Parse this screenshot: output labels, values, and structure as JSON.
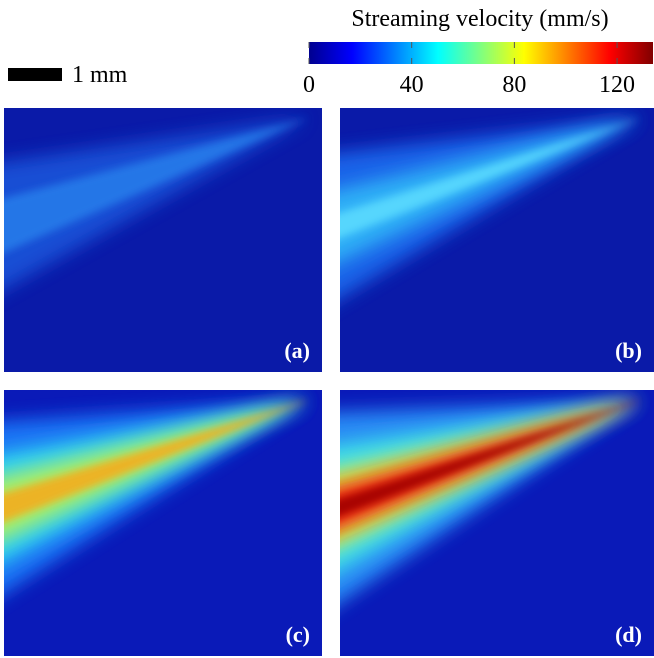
{
  "colorbar": {
    "title": "Streaming velocity (mm/s)",
    "lim": [
      0,
      134
    ],
    "ticks": [
      0,
      40,
      80,
      120
    ]
  },
  "scale_bar": {
    "label": "1 mm"
  },
  "panels": [
    {
      "label": "(a)"
    },
    {
      "label": "(b)"
    },
    {
      "label": "(c)"
    },
    {
      "label": "(d)"
    }
  ]
}
